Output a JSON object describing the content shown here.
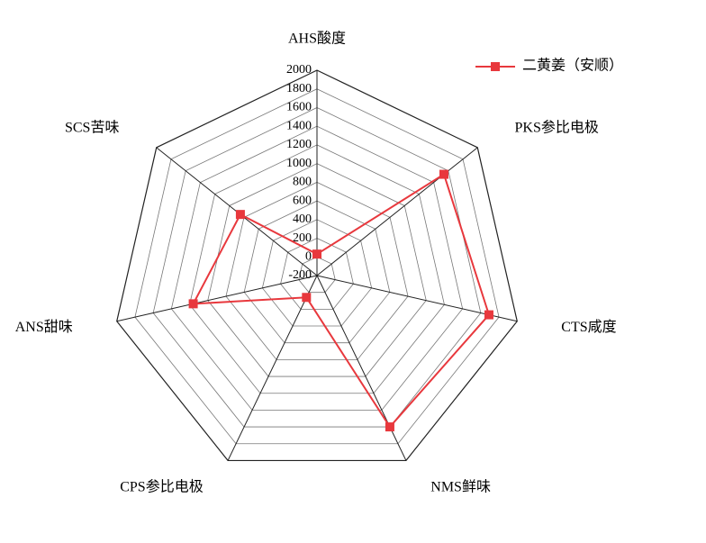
{
  "chart_data": {
    "type": "radar",
    "categories": [
      "AHS酸度",
      "PKS参比电极",
      "CTS咸度",
      "NMS鲜味",
      "CPS参比电极",
      "ANS甜味",
      "SCS苦味"
    ],
    "series": [
      {
        "name": "二黄姜（安顺）",
        "color": "#e8383d",
        "values": [
          30,
          1540,
          1690,
          1600,
          60,
          1160,
          850
        ]
      }
    ],
    "ylim": [
      -200,
      2000
    ],
    "yticks": [
      -200,
      0,
      200,
      400,
      600,
      800,
      1000,
      1200,
      1400,
      1600,
      1800,
      2000
    ],
    "grid": true,
    "legend": "top-right"
  }
}
